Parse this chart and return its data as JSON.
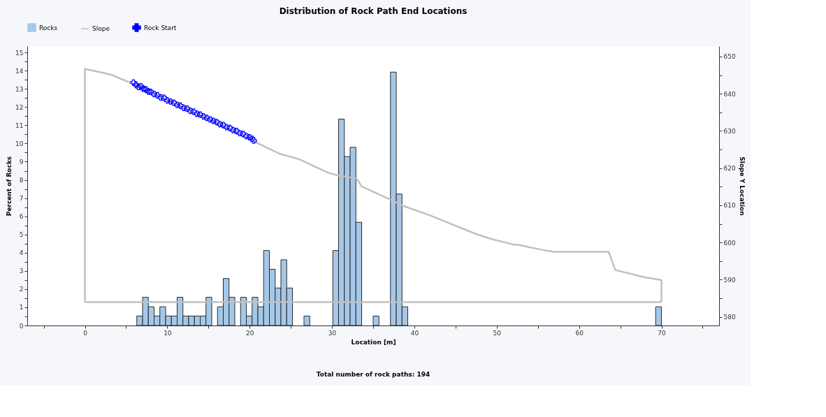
{
  "chart_data": {
    "type": "histogram",
    "title": "Distribution of Rock Path End Locations",
    "xlabel": "Location [m]",
    "ylabel": "Percent of Rocks",
    "y2label": "Slope Y Location",
    "xlim": [
      -7,
      77
    ],
    "ylim": [
      0,
      15.35
    ],
    "y2lim": [
      577.7,
      652.8
    ],
    "xticks": [
      {
        "value": -5,
        "label": null
      },
      0,
      {
        "value": 5,
        "label": null
      },
      10,
      {
        "value": 15,
        "label": null
      },
      20,
      {
        "value": 25,
        "label": null
      },
      30,
      {
        "value": 35,
        "label": null
      },
      40,
      {
        "value": 45,
        "label": null
      },
      50,
      {
        "value": 55,
        "label": null
      },
      60,
      {
        "value": 65,
        "label": null
      },
      70,
      {
        "value": 75,
        "label": null
      }
    ],
    "yticks": [
      0,
      {
        "value": 0.5,
        "label": null
      },
      1,
      {
        "value": 1.5,
        "label": null
      },
      2,
      {
        "value": 2.5,
        "label": null
      },
      3,
      {
        "value": 3.5,
        "label": null
      },
      4,
      {
        "value": 4.5,
        "label": null
      },
      5,
      {
        "value": 5.5,
        "label": null
      },
      6,
      {
        "value": 6.5,
        "label": null
      },
      7,
      {
        "value": 7.5,
        "label": null
      },
      8,
      {
        "value": 8.5,
        "label": null
      },
      9,
      {
        "value": 9.5,
        "label": null
      },
      10,
      {
        "value": 10.5,
        "label": null
      },
      11,
      {
        "value": 11.5,
        "label": null
      },
      12,
      {
        "value": 12.5,
        "label": null
      },
      13,
      {
        "value": 13.5,
        "label": null
      },
      14,
      {
        "value": 14.5,
        "label": null
      },
      15
    ],
    "y2ticks": [
      580,
      {
        "value": 585,
        "label": null
      },
      590,
      {
        "value": 595,
        "label": null
      },
      600,
      {
        "value": 605,
        "label": null
      },
      610,
      {
        "value": 615,
        "label": null
      },
      620,
      {
        "value": 625,
        "label": null
      },
      630,
      {
        "value": 635,
        "label": null
      },
      640,
      {
        "value": 645,
        "label": null
      },
      650
    ],
    "grid": false,
    "legend": "top",
    "annotations": [
      "Total number of rock paths:  194"
    ],
    "series": [
      {
        "name": "Rocks",
        "type": "histogram",
        "color": "#a6c8e8",
        "bins": [
          6.3,
          7.0,
          7.7,
          8.4,
          9.1,
          9.8,
          10.5,
          11.2,
          11.9,
          12.6,
          13.3,
          14.0,
          14.7,
          15.4,
          16.1,
          16.8,
          17.5,
          18.2,
          18.9,
          19.6,
          20.3,
          21.0,
          21.7,
          22.4,
          23.1,
          23.8,
          24.5,
          25.2,
          25.9,
          26.6,
          27.3,
          28.0,
          28.7,
          29.4,
          30.1,
          30.8,
          31.5,
          32.2,
          32.9,
          33.6,
          34.3,
          35.0,
          35.7,
          36.4,
          37.1,
          37.8,
          38.5,
          39.2,
          39.9,
          40.6,
          41.3,
          42.0,
          42.7,
          43.4,
          44.1,
          44.8,
          45.5,
          46.2,
          46.9,
          47.6,
          48.3,
          49.0,
          49.7,
          50.4,
          51.1,
          51.8,
          52.5,
          53.2,
          53.9,
          54.6,
          55.3,
          56.0,
          56.7,
          57.4,
          58.1,
          58.8,
          59.5,
          60.2,
          60.9,
          61.6,
          62.3,
          63.0,
          63.7,
          64.4,
          65.1,
          65.8,
          66.5,
          67.2,
          67.9,
          68.6,
          69.3,
          70.0
        ],
        "values": [
          0.52,
          1.55,
          1.03,
          0.52,
          1.03,
          0.52,
          0.52,
          1.55,
          0.52,
          0.52,
          0.52,
          0.52,
          1.55,
          0,
          1.03,
          2.58,
          1.55,
          0,
          1.55,
          0.52,
          1.55,
          1.03,
          4.12,
          3.09,
          2.06,
          3.61,
          2.06,
          0,
          0,
          0.52,
          0,
          0,
          0,
          0,
          4.12,
          11.34,
          9.28,
          9.79,
          5.67,
          0,
          0,
          0.52,
          0,
          0,
          13.92,
          7.22,
          1.03,
          0,
          0,
          0,
          0,
          0,
          0,
          0,
          0,
          0,
          0,
          0,
          0,
          0,
          0,
          0,
          0,
          0,
          0,
          0,
          0,
          0,
          0,
          0,
          0,
          0,
          0,
          0,
          0,
          0,
          0,
          0,
          0,
          0,
          0,
          0,
          0,
          0,
          0,
          0,
          0,
          0,
          0,
          0,
          1.03
        ]
      },
      {
        "name": "Slope",
        "type": "line",
        "axis": "y2",
        "color": "#c0c0c0",
        "x": [
          0,
          0,
          3.2,
          5.9,
          20.5,
          23.6,
          26.0,
          29.5,
          30.8,
          33.0,
          33.6,
          37.1,
          38.7,
          41.9,
          47.6,
          49.6,
          52.0,
          52.6,
          55.6,
          56.9,
          63.6,
          64.4,
          67.9,
          70,
          70
        ],
        "values": [
          584.0,
          646.7,
          645.1,
          642.6,
          627.2,
          623.9,
          622.4,
          618.8,
          618.0,
          617.2,
          615.1,
          611.5,
          609.8,
          607.3,
          602.2,
          600.8,
          599.5,
          599.4,
          598.0,
          597.5,
          597.5,
          592.6,
          590.7,
          589.9,
          584.0
        ]
      },
      {
        "type": "line",
        "axis": "y2",
        "color": "#c0c0c0",
        "x": [
          0,
          70
        ],
        "values": [
          584.0,
          584.0
        ]
      },
      {
        "name": "Rock Start",
        "type": "scatter",
        "axis": "y2",
        "color": "#0000ff",
        "marker": "cross",
        "x": [
          5.9,
          6.2,
          6.5,
          6.8,
          7.1,
          7.4,
          7.7,
          8.0,
          8.4,
          8.8,
          9.2,
          9.6,
          10.0,
          10.4,
          10.8,
          11.2,
          11.6,
          12.0,
          12.4,
          12.8,
          13.2,
          13.6,
          14.0,
          14.4,
          14.8,
          15.2,
          15.6,
          16.0,
          16.4,
          16.8,
          17.2,
          17.6,
          18.0,
          18.4,
          18.8,
          19.2,
          19.6,
          20.0,
          20.3,
          20.5
        ],
        "values": [
          643.0,
          642.4,
          641.8,
          642.0,
          641.3,
          641.2,
          640.6,
          640.5,
          639.9,
          639.6,
          639.0,
          638.9,
          638.2,
          637.9,
          637.6,
          637.0,
          636.8,
          636.2,
          636.0,
          635.4,
          635.2,
          634.6,
          634.4,
          633.9,
          633.5,
          633.1,
          632.7,
          632.4,
          631.8,
          631.6,
          631.0,
          630.8,
          630.2,
          630.0,
          629.4,
          629.2,
          628.6,
          628.3,
          627.9,
          627.4
        ]
      }
    ]
  }
}
